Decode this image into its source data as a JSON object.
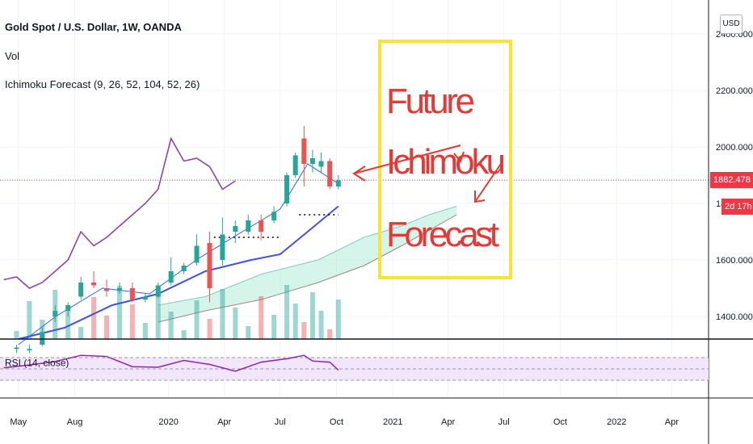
{
  "header": {
    "symbol_title": "Gold Spot / U.S. Dollar, 1W, OANDA",
    "volume_label": "Vol",
    "indicator_label": "Ichimoku Forecast (9, 26, 52, 104, 52, 26)",
    "currency_button": "USD"
  },
  "price_scale": {
    "current_price": "1882.478",
    "countdown": "2d 17h",
    "current_price_color": "#f23645"
  },
  "annotation": {
    "lines": [
      "Future",
      "Ichimoku",
      "Forecast"
    ],
    "text_color": "#e53935",
    "box_color": "#f9e431"
  },
  "rsi": {
    "label": "RSI (14, close)",
    "line_color": "#8e24aa",
    "band_color": "#f3e5fb"
  },
  "chart_data": {
    "type": "line",
    "series": [
      {
        "values_x": [
          "2019-04-07",
          "2019-04-28",
          "2019-05-19",
          "2019-06-09",
          "2019-06-30",
          "2019-07-21",
          "2019-08-11",
          "2019-09-01",
          "2019-09-22",
          "2019-10-13",
          "2019-11-03",
          "2019-11-24",
          "2019-12-15",
          "2020-01-05",
          "2020-01-26",
          "2020-02-16",
          "2020-03-08",
          "2020-03-29",
          "2020-04-19"
        ],
        "values": [
          1530,
          1540,
          1500,
          1520,
          1560,
          1600,
          1700,
          1650,
          1680,
          1720,
          1760,
          1800,
          1850,
          2030,
          1950,
          1960,
          1930,
          1850,
          1880
        ]
      }
    ],
    "candles": [
      {
        "x": "2019-04-28",
        "o": 1285,
        "h": 1300,
        "l": 1270,
        "c": 1290
      },
      {
        "x": "2019-05-19",
        "o": 1280,
        "h": 1300,
        "l": 1270,
        "c": 1285
      },
      {
        "x": "2019-06-09",
        "o": 1300,
        "h": 1360,
        "l": 1295,
        "c": 1345
      },
      {
        "x": "2019-06-30",
        "o": 1400,
        "h": 1440,
        "l": 1380,
        "c": 1420
      },
      {
        "x": "2019-07-21",
        "o": 1420,
        "h": 1450,
        "l": 1400,
        "c": 1440
      },
      {
        "x": "2019-08-11",
        "o": 1470,
        "h": 1540,
        "l": 1460,
        "c": 1520
      },
      {
        "x": "2019-09-01",
        "o": 1520,
        "h": 1560,
        "l": 1500,
        "c": 1510
      },
      {
        "x": "2019-09-22",
        "o": 1500,
        "h": 1530,
        "l": 1470,
        "c": 1490
      },
      {
        "x": "2019-10-13",
        "o": 1490,
        "h": 1520,
        "l": 1480,
        "c": 1500
      },
      {
        "x": "2019-11-03",
        "o": 1500,
        "h": 1520,
        "l": 1450,
        "c": 1460
      },
      {
        "x": "2019-11-24",
        "o": 1460,
        "h": 1480,
        "l": 1450,
        "c": 1470
      },
      {
        "x": "2019-12-15",
        "o": 1470,
        "h": 1520,
        "l": 1465,
        "c": 1510
      },
      {
        "x": "2020-01-05",
        "o": 1520,
        "h": 1610,
        "l": 1510,
        "c": 1560
      },
      {
        "x": "2020-01-26",
        "o": 1560,
        "h": 1590,
        "l": 1550,
        "c": 1580
      },
      {
        "x": "2020-02-16",
        "o": 1590,
        "h": 1690,
        "l": 1580,
        "c": 1650
      },
      {
        "x": "2020-03-08",
        "o": 1660,
        "h": 1700,
        "l": 1450,
        "c": 1500
      },
      {
        "x": "2020-03-29",
        "o": 1600,
        "h": 1750,
        "l": 1580,
        "c": 1690
      },
      {
        "x": "2020-04-19",
        "o": 1700,
        "h": 1740,
        "l": 1660,
        "c": 1720
      },
      {
        "x": "2020-05-10",
        "o": 1700,
        "h": 1760,
        "l": 1690,
        "c": 1740
      },
      {
        "x": "2020-05-31",
        "o": 1740,
        "h": 1760,
        "l": 1670,
        "c": 1700
      },
      {
        "x": "2020-06-21",
        "o": 1740,
        "h": 1790,
        "l": 1730,
        "c": 1770
      },
      {
        "x": "2020-07-12",
        "o": 1800,
        "h": 1910,
        "l": 1790,
        "c": 1900
      },
      {
        "x": "2020-07-26",
        "o": 1900,
        "h": 1980,
        "l": 1890,
        "c": 1970
      },
      {
        "x": "2020-08-09",
        "o": 2030,
        "h": 2075,
        "l": 1860,
        "c": 1940
      },
      {
        "x": "2020-08-23",
        "o": 1940,
        "h": 1990,
        "l": 1910,
        "c": 1960
      },
      {
        "x": "2020-09-06",
        "o": 1930,
        "h": 1980,
        "l": 1910,
        "c": 1950
      },
      {
        "x": "2020-09-20",
        "o": 1950,
        "h": 1960,
        "l": 1850,
        "c": 1860
      },
      {
        "x": "2020-10-04",
        "o": 1860,
        "h": 1900,
        "l": 1850,
        "c": 1882
      }
    ],
    "x_ticks": [
      "May",
      "Aug",
      "2020",
      "Apr",
      "Jul",
      "Oct",
      "2021",
      "Apr",
      "Jul",
      "Oct",
      "2022",
      "Apr"
    ],
    "y_ticks": [
      1400,
      1600,
      1800,
      2000,
      2200,
      2400
    ],
    "y_tick_labels": [
      "1400.000",
      "1600.000",
      "1800.000",
      "2000.000",
      "2200.000",
      "2400.000"
    ],
    "current_price": 1882.478,
    "ylim": [
      1320,
      2520
    ],
    "xlim": [
      "2019-04-01",
      "2022-05-31"
    ],
    "rsi": {
      "x": [
        "2019-04-07",
        "2019-05-19",
        "2019-06-30",
        "2019-08-11",
        "2019-09-22",
        "2019-11-03",
        "2019-12-15",
        "2020-01-26",
        "2020-03-08",
        "2020-04-19",
        "2020-05-31",
        "2020-07-12",
        "2020-08-09",
        "2020-08-23",
        "2020-09-20",
        "2020-10-04"
      ],
      "values": [
        52,
        57,
        63,
        74,
        72,
        54,
        53,
        65,
        58,
        46,
        62,
        68,
        74,
        64,
        62,
        48
      ],
      "upper": 70,
      "lower": 30
    },
    "grid": true
  }
}
